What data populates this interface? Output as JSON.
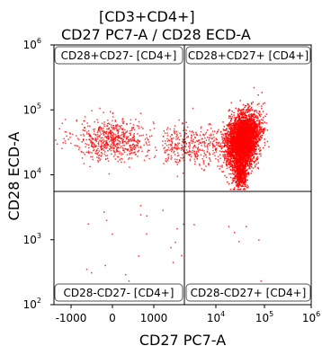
{
  "chart_data": {
    "type": "scatter",
    "title_line1": "[CD3+CD4+]",
    "title_line2": "CD27 PC7-A / CD28 ECD-A",
    "xlabel": "CD27 PC7-A",
    "ylabel": "CD28 ECD-A",
    "x_scale": "biexponential",
    "y_scale": "log",
    "y_range": [
      100,
      1000000
    ],
    "x_ticks": [
      {
        "value": -1000,
        "label": "-1000"
      },
      {
        "value": 0,
        "label": "0"
      },
      {
        "value": 1000,
        "label": "1000"
      },
      {
        "value": 10000,
        "label": "10",
        "exp": "4"
      },
      {
        "value": 100000,
        "label": "10",
        "exp": "5"
      },
      {
        "value": 1000000,
        "label": "10",
        "exp": "6"
      }
    ],
    "y_ticks": [
      {
        "value": 100,
        "label": "10",
        "exp": "2"
      },
      {
        "value": 1000,
        "label": "10",
        "exp": "3"
      },
      {
        "value": 10000,
        "label": "10",
        "exp": "4"
      },
      {
        "value": 100000,
        "label": "10",
        "exp": "5"
      },
      {
        "value": 1000000,
        "label": "10",
        "exp": "6"
      }
    ],
    "quadrant_gates": [
      {
        "name": "CD28+CD27- [CD4+]",
        "position": "top-left"
      },
      {
        "name": "CD28+CD27+ [CD4+]",
        "position": "top-right"
      },
      {
        "name": "CD28-CD27- [CD4+]",
        "position": "bottom-left"
      },
      {
        "name": "CD28-CD27+ [CD4+]",
        "position": "bottom-right"
      }
    ],
    "point_color": "#ff0000",
    "grid": false
  }
}
